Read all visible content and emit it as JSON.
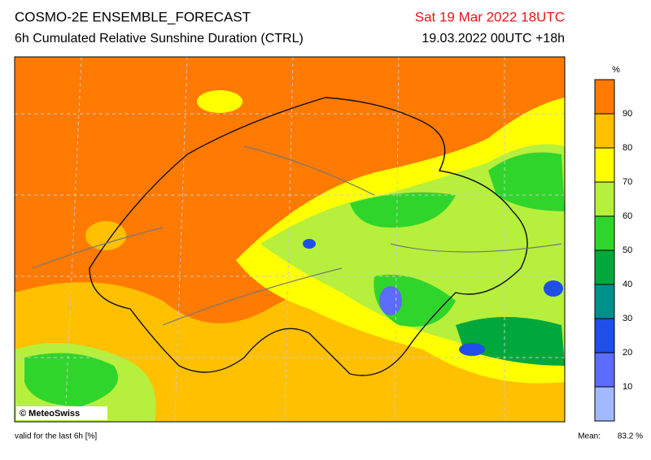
{
  "header": {
    "title": "COSMO-2E ENSEMBLE_FORECAST",
    "subtitle": "6h Cumulated Relative Sunshine Duration (CTRL)",
    "valid_time": "Sat 19 Mar 2022 18UTC",
    "run": "19.03.2022 00UTC +18h"
  },
  "colorbar": {
    "unit": "%",
    "ticks": [
      10,
      20,
      30,
      40,
      50,
      60,
      70,
      80,
      90
    ],
    "range": [
      0,
      100
    ],
    "colors": [
      "#a3b9ff",
      "#5c6cff",
      "#1f4fe8",
      "#00908c",
      "#00a83c",
      "#30d52c",
      "#b6f03c",
      "#ffff00",
      "#ffc000",
      "#ff7a00"
    ]
  },
  "map": {
    "copyright": "© MeteoSwiss"
  },
  "footer": {
    "note": "valid for the last 6h [%]",
    "mean_label": "Mean:",
    "mean_value": "83.2 %"
  }
}
